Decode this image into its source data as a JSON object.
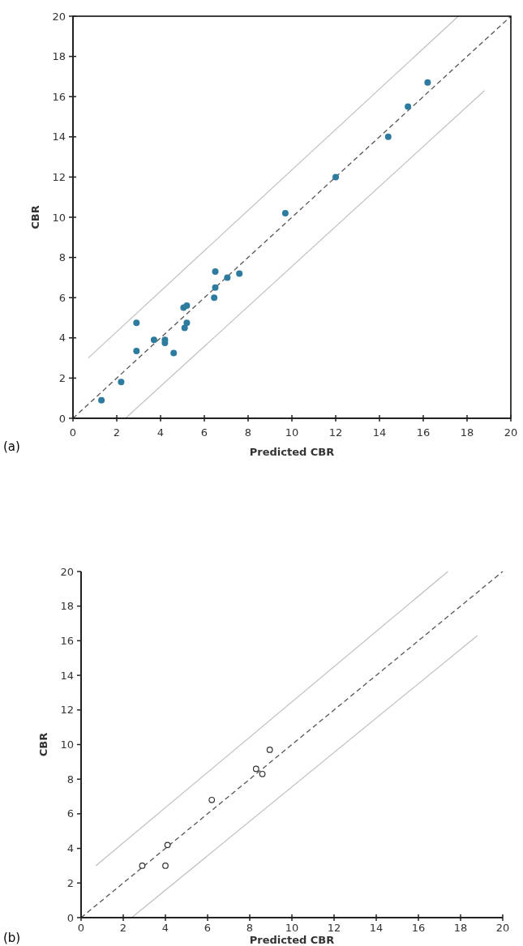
{
  "chart_data": [
    {
      "type": "scatter",
      "xlabel": "Predicted CBR",
      "ylabel": "CBR",
      "xlim": [
        0,
        20
      ],
      "ylim": [
        0,
        20
      ],
      "xticks": [
        0,
        2,
        4,
        6,
        8,
        10,
        12,
        14,
        16,
        18,
        20
      ],
      "yticks": [
        0,
        2,
        4,
        6,
        8,
        10,
        12,
        14,
        16,
        18,
        20
      ],
      "grid": false,
      "annotations": [
        "(a)"
      ],
      "series": [
        {
          "type": "line",
          "color": "#c0c0c0",
          "line_style": "solid",
          "x": [
            0.7,
            17.6
          ],
          "values": [
            3.0,
            20
          ]
        },
        {
          "type": "line",
          "color": "#c0c0c0",
          "line_style": "solid",
          "x": [
            2.4,
            18.8
          ],
          "values": [
            0,
            16.3
          ]
        },
        {
          "type": "line",
          "color": "#555555",
          "line_style": "dashed",
          "x": [
            0,
            20
          ],
          "values": [
            0,
            20
          ]
        },
        {
          "type": "scatter",
          "color": "#2e7ba0",
          "marker": "circle",
          "x": [
            1.3,
            2.2,
            2.9,
            2.9,
            3.7,
            4.2,
            4.2,
            4.6,
            5.05,
            5.2,
            5.1,
            5.2,
            6.45,
            6.5,
            6.5,
            7.05,
            7.6,
            9.7,
            12.0,
            14.4,
            15.3,
            16.2
          ],
          "values": [
            0.9,
            1.8,
            3.35,
            4.75,
            3.9,
            3.75,
            3.9,
            3.25,
            5.5,
            5.6,
            4.5,
            4.75,
            6.0,
            6.5,
            7.3,
            7.0,
            7.2,
            10.2,
            12.0,
            14.0,
            15.5,
            16.7
          ]
        }
      ]
    },
    {
      "type": "scatter",
      "xlabel": "Predicted CBR",
      "ylabel": "CBR",
      "xlim": [
        0,
        20
      ],
      "ylim": [
        0,
        20
      ],
      "xticks": [
        0,
        2,
        4,
        6,
        8,
        10,
        12,
        14,
        16,
        18,
        20
      ],
      "yticks": [
        0,
        2,
        4,
        6,
        8,
        10,
        12,
        14,
        16,
        18,
        20
      ],
      "grid": false,
      "annotations": [
        "(b)"
      ],
      "series": [
        {
          "type": "line",
          "color": "#c0c0c0",
          "line_style": "solid",
          "x": [
            0.7,
            17.4
          ],
          "values": [
            3.0,
            20
          ]
        },
        {
          "type": "line",
          "color": "#c0c0c0",
          "line_style": "solid",
          "x": [
            2.4,
            18.8
          ],
          "values": [
            0,
            16.3
          ]
        },
        {
          "type": "line",
          "color": "#555555",
          "line_style": "dashed",
          "x": [
            0,
            20
          ],
          "values": [
            0,
            20
          ]
        },
        {
          "type": "scatter",
          "color": "#333333",
          "marker": "circle",
          "x": [
            2.9,
            4.0,
            4.1,
            6.2,
            8.3,
            8.6,
            8.95
          ],
          "values": [
            3.0,
            3.0,
            4.2,
            6.8,
            8.6,
            8.3,
            9.7
          ]
        }
      ]
    }
  ]
}
